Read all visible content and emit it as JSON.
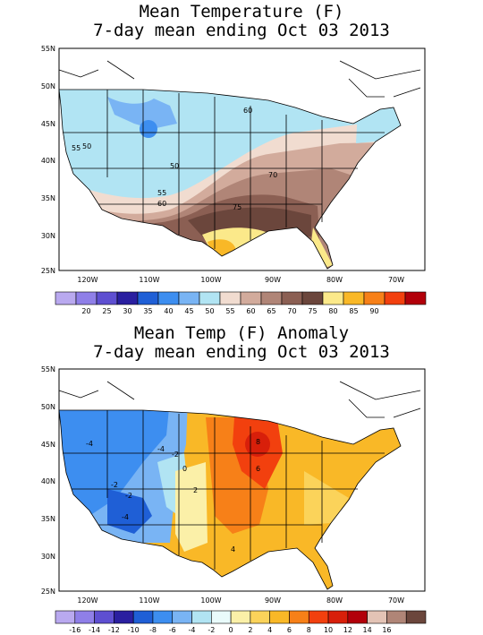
{
  "panel1": {
    "title_line1": "Mean Temperature (F)",
    "title_line2": "7-day mean ending Oct 03 2013",
    "lat_labels": [
      "55N",
      "50N",
      "45N",
      "40N",
      "35N",
      "30N",
      "25N"
    ],
    "lon_labels": [
      "120W",
      "110W",
      "100W",
      "90W",
      "80W",
      "70W"
    ],
    "contour_labels": [
      "55",
      "50",
      "50",
      "55",
      "60",
      "60",
      "70",
      "75"
    ],
    "colorbar": {
      "colors": [
        "#b9a9ef",
        "#8f7fe8",
        "#5e4fd1",
        "#2a1fa0",
        "#1f5fd6",
        "#3d8ef0",
        "#79b4f4",
        "#b1e4f3",
        "#f1dcd0",
        "#d2ab9c",
        "#b08577",
        "#8b5f53",
        "#6b463c",
        "#fbe98a",
        "#f9b827",
        "#f78018",
        "#f2400e",
        "#b2000a"
      ],
      "labels": [
        "20",
        "25",
        "30",
        "35",
        "40",
        "45",
        "50",
        "55",
        "60",
        "65",
        "70",
        "75",
        "80",
        "85",
        "90"
      ]
    }
  },
  "panel2": {
    "title_line1": "Mean Temp (F) Anomaly",
    "title_line2": "7-day mean ending Oct 03 2013",
    "lat_labels": [
      "55N",
      "50N",
      "45N",
      "40N",
      "35N",
      "30N",
      "25N"
    ],
    "lon_labels": [
      "120W",
      "110W",
      "100W",
      "90W",
      "80W",
      "70W"
    ],
    "contour_labels": [
      "-4",
      "-2",
      "-4",
      "-2",
      "0",
      "2",
      "6",
      "8",
      "4",
      "-4",
      "-2"
    ],
    "colorbar": {
      "colors": [
        "#b9a9ef",
        "#8f7fe8",
        "#5e4fd1",
        "#2a1fa0",
        "#1f5fd6",
        "#3d8ef0",
        "#79b4f4",
        "#b1e4f3",
        "#e9fbfb",
        "#fbf0a8",
        "#fbd35a",
        "#f9b827",
        "#f78018",
        "#f2400e",
        "#d81f0a",
        "#b2000a",
        "#e3c3b5",
        "#b08577",
        "#6b463c"
      ],
      "labels": [
        "-16",
        "-14",
        "-12",
        "-10",
        "-8",
        "-6",
        "-4",
        "-2",
        "0",
        "2",
        "4",
        "6",
        "8",
        "10",
        "12",
        "14",
        "16"
      ]
    }
  }
}
